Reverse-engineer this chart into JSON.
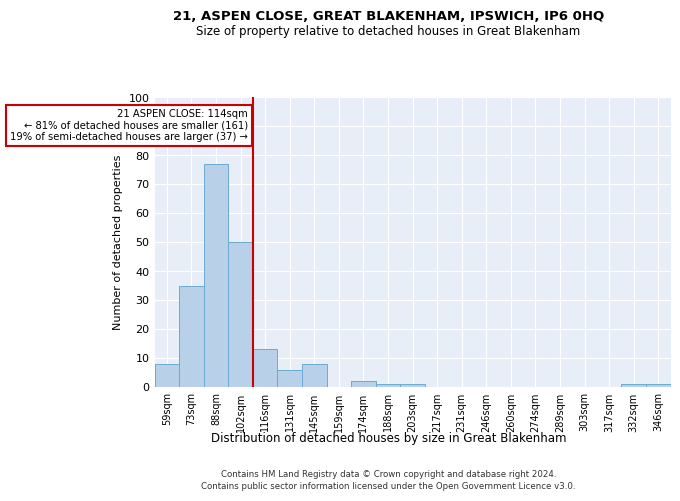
{
  "title1": "21, ASPEN CLOSE, GREAT BLAKENHAM, IPSWICH, IP6 0HQ",
  "title2": "Size of property relative to detached houses in Great Blakenham",
  "xlabel": "Distribution of detached houses by size in Great Blakenham",
  "ylabel": "Number of detached properties",
  "categories": [
    "59sqm",
    "73sqm",
    "88sqm",
    "102sqm",
    "116sqm",
    "131sqm",
    "145sqm",
    "159sqm",
    "174sqm",
    "188sqm",
    "203sqm",
    "217sqm",
    "231sqm",
    "246sqm",
    "260sqm",
    "274sqm",
    "289sqm",
    "303sqm",
    "317sqm",
    "332sqm",
    "346sqm"
  ],
  "values": [
    8,
    35,
    77,
    50,
    13,
    6,
    8,
    0,
    2,
    1,
    1,
    0,
    0,
    0,
    0,
    0,
    0,
    0,
    0,
    1,
    1
  ],
  "bar_color": "#b8d0e8",
  "bar_edge_color": "#6aaad4",
  "vline_color": "#cc0000",
  "annotation_lines": [
    "21 ASPEN CLOSE: 114sqm",
    "← 81% of detached houses are smaller (161)",
    "19% of semi-detached houses are larger (37) →"
  ],
  "annotation_box_color": "#cc0000",
  "ylim": [
    0,
    100
  ],
  "yticks": [
    0,
    10,
    20,
    30,
    40,
    50,
    60,
    70,
    80,
    90,
    100
  ],
  "footnote1": "Contains HM Land Registry data © Crown copyright and database right 2024.",
  "footnote2": "Contains public sector information licensed under the Open Government Licence v3.0.",
  "bg_color": "#e8eef8"
}
